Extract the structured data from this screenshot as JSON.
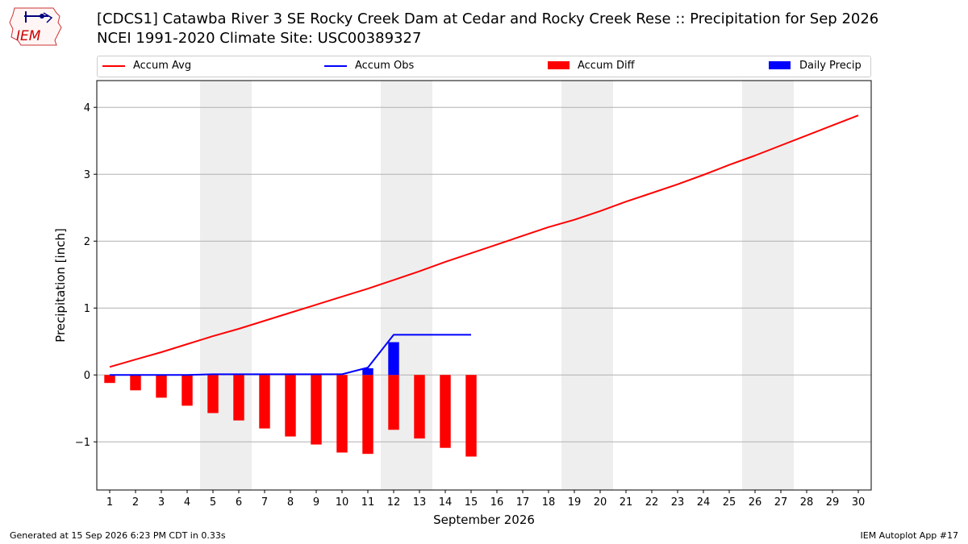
{
  "header": {
    "title_line1": "[CDCS1] Catawba River 3 SE Rocky Creek Dam at Cedar and Rocky Creek Rese :: Precipitation for Sep 2026",
    "title_line2": "NCEI 1991-2020 Climate Site: USC00389327",
    "logo_text": "IEM"
  },
  "legend": [
    {
      "label": "Accum Avg",
      "kind": "line",
      "color": "#ff0000"
    },
    {
      "label": "Accum Obs",
      "kind": "line",
      "color": "#0000ff"
    },
    {
      "label": "Accum Diff",
      "kind": "bar",
      "color": "#ff0000"
    },
    {
      "label": "Daily Precip",
      "kind": "bar",
      "color": "#0000ff"
    }
  ],
  "footer": {
    "left": "Generated at 15 Sep 2026 6:23 PM CDT in 0.33s",
    "right": "IEM Autoplot App #17"
  },
  "chart_data": {
    "type": "bar",
    "xlabel": "September 2026",
    "ylabel": "Precipitation [inch]",
    "xlim": [
      0.5,
      30.5
    ],
    "ylim": [
      -1.72,
      4.4
    ],
    "x_ticks": [
      1,
      2,
      3,
      4,
      5,
      6,
      7,
      8,
      9,
      10,
      11,
      12,
      13,
      14,
      15,
      16,
      17,
      18,
      19,
      20,
      21,
      22,
      23,
      24,
      25,
      26,
      27,
      28,
      29,
      30
    ],
    "y_ticks": [
      -1,
      0,
      1,
      2,
      3,
      4
    ],
    "y_tick_labels": [
      "−1",
      "0",
      "1",
      "2",
      "3",
      "4"
    ],
    "grid": "horizontal",
    "weekend_shading": [
      [
        4.5,
        6.5
      ],
      [
        11.5,
        13.5
      ],
      [
        18.5,
        20.5
      ],
      [
        25.5,
        27.5
      ]
    ],
    "series": [
      {
        "name": "Accum Avg",
        "type": "line",
        "color": "#ff0000",
        "x": [
          1,
          2,
          3,
          4,
          5,
          6,
          7,
          8,
          9,
          10,
          11,
          12,
          13,
          14,
          15,
          16,
          17,
          18,
          19,
          20,
          21,
          22,
          23,
          24,
          25,
          26,
          27,
          28,
          29,
          30
        ],
        "values": [
          0.12,
          0.23,
          0.34,
          0.46,
          0.58,
          0.69,
          0.81,
          0.93,
          1.05,
          1.17,
          1.29,
          1.42,
          1.55,
          1.69,
          1.82,
          1.95,
          2.08,
          2.21,
          2.32,
          2.45,
          2.59,
          2.72,
          2.85,
          2.99,
          3.14,
          3.28,
          3.43,
          3.58,
          3.73,
          3.88
        ]
      },
      {
        "name": "Accum Obs",
        "type": "line",
        "color": "#0000ff",
        "x": [
          1,
          2,
          3,
          4,
          5,
          6,
          7,
          8,
          9,
          10,
          11,
          12,
          13,
          14,
          15
        ],
        "values": [
          0.0,
          0.0,
          0.0,
          0.0,
          0.01,
          0.01,
          0.01,
          0.01,
          0.01,
          0.01,
          0.11,
          0.6,
          0.6,
          0.6,
          0.6
        ]
      },
      {
        "name": "Accum Diff",
        "type": "bar",
        "color": "#ff0000",
        "x": [
          1,
          2,
          3,
          4,
          5,
          6,
          7,
          8,
          9,
          10,
          11,
          12,
          13,
          14,
          15
        ],
        "values": [
          -0.12,
          -0.23,
          -0.34,
          -0.46,
          -0.57,
          -0.68,
          -0.8,
          -0.92,
          -1.04,
          -1.16,
          -1.18,
          -0.82,
          -0.95,
          -1.09,
          -1.22
        ]
      },
      {
        "name": "Daily Precip",
        "type": "bar",
        "color": "#0000ff",
        "x": [
          11,
          12
        ],
        "values": [
          0.1,
          0.49
        ]
      }
    ]
  }
}
